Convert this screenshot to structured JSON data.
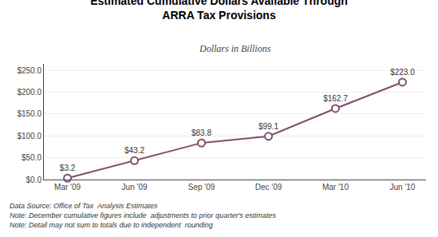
{
  "chart_data": {
    "type": "line",
    "title": "Estimated Cumulative Dollars Available Through\nARRA Tax Provisions",
    "subtitle": "Dollars in Billions",
    "categories": [
      "Mar '09",
      "Jun '09",
      "Sep '09",
      "Dec '09",
      "Mar '10",
      "Jun '10"
    ],
    "values": [
      3.2,
      43.2,
      83.8,
      99.1,
      162.7,
      223.0
    ],
    "value_labels": [
      "$3.2",
      "$43.2",
      "$83.8",
      "$99.1",
      "$162.7",
      "$223.0"
    ],
    "data_labels": true,
    "color": "#7B4F6B",
    "marker": "circle",
    "ylim": [
      0,
      265
    ],
    "yticks": [
      {
        "value": 0,
        "label": "$0.0"
      },
      {
        "value": 50,
        "label": "$50.0"
      },
      {
        "value": 100,
        "label": "$100.0"
      },
      {
        "value": 150,
        "label": "$150.0"
      },
      {
        "value": 200,
        "label": "$200.0"
      },
      {
        "value": 250,
        "label": "$250.0"
      }
    ],
    "grid": true,
    "annotations": [
      "Data Source: Office of Tax  Analysis Estimates",
      "Note: December cumulative figures include  adjustments to prior quarter's estimates",
      "Note: Detail may not sum to totals due to independent  rounding"
    ]
  }
}
